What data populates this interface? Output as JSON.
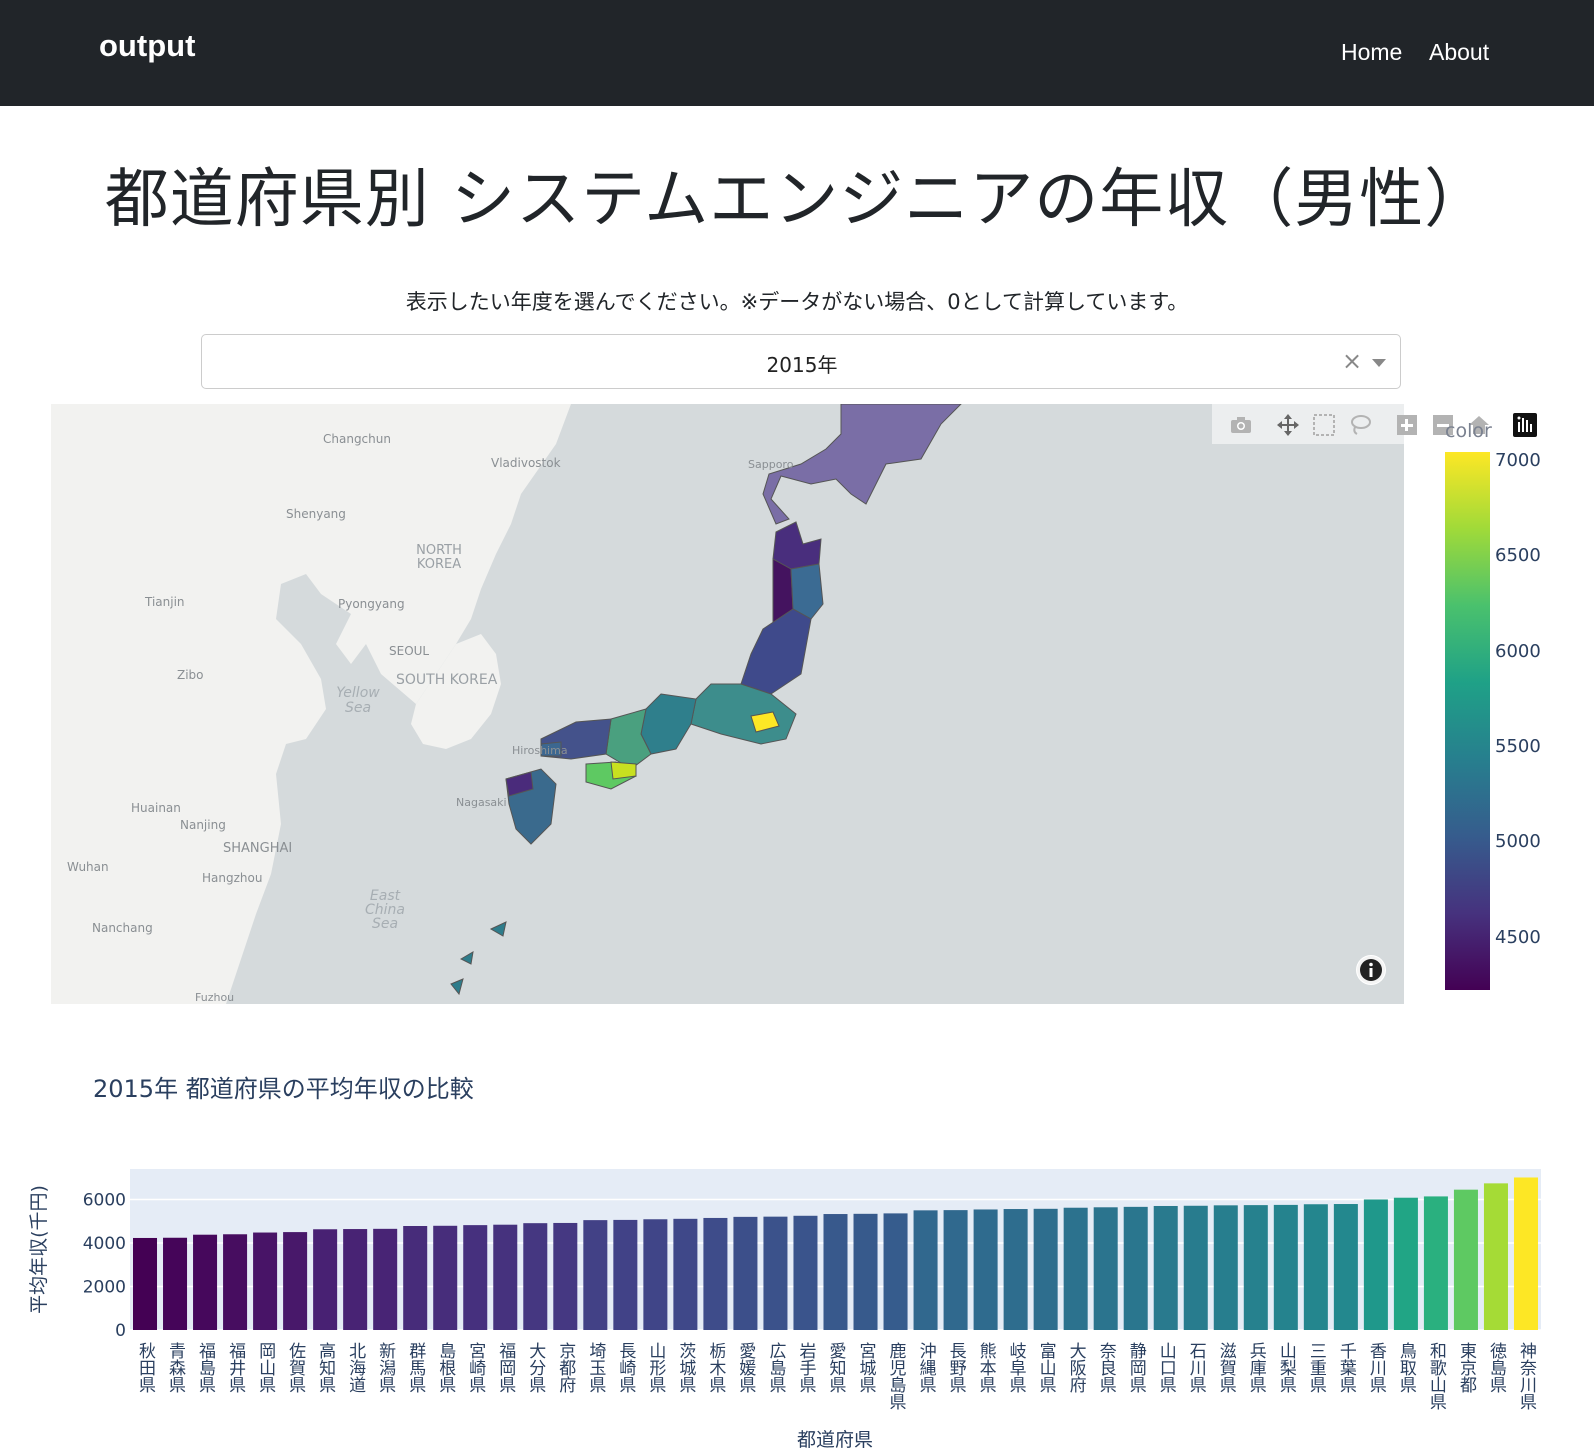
{
  "navbar": {
    "brand": "output",
    "links": [
      "Home",
      "About"
    ]
  },
  "page": {
    "title": "都道府県別 システムエンジニアの年収（男性）",
    "instruction": "表示したい年度を選んでください。※データがない場合、0として計算しています。"
  },
  "year_select": {
    "value": "2015年",
    "clear_glyph": "×"
  },
  "map": {
    "colorbar_title": "color",
    "colorbar_ticks": [
      "7000",
      "6500",
      "6000",
      "5500",
      "5000",
      "4500"
    ],
    "labels": {
      "changchun": "Changchun",
      "vladivostok": "Vladivostok",
      "sapporo": "Sapporo",
      "shenyang": "Shenyang",
      "north_korea": "NORTH KOREA",
      "tianjin": "Tianjin",
      "pyongyang": "Pyongyang",
      "seoul": "SEOUL",
      "south_korea": "SOUTH KOREA",
      "zibo": "Zibo",
      "yellow_sea": "Yellow Sea",
      "hiroshima": "Hiroshima",
      "nagasaki": "Nagasaki",
      "huainan": "Huainan",
      "nanjing": "Nanjing",
      "shanghai": "SHANGHAI",
      "wuhan": "Wuhan",
      "hangzhou": "Hangzhou",
      "nanchang": "Nanchang",
      "east_china_sea": "East China Sea",
      "fuzhou": "Fuzhou"
    },
    "icons": [
      "camera-icon",
      "pan-icon",
      "box-select-icon",
      "lasso-icon",
      "zoom-in-icon",
      "zoom-out-icon",
      "home-icon",
      "plotly-logo-icon",
      "info-icon"
    ]
  },
  "bar_chart_title": "2015年 都道府県の平均年収の比較",
  "chart_data": {
    "type": "bar",
    "title": "2015年 都道府県の平均年収の比較",
    "xlabel": "都道府県",
    "ylabel": "平均年収(千円)",
    "ylim": [
      0,
      7400
    ],
    "yticks": [
      0,
      2000,
      4000,
      6000
    ],
    "grid": true,
    "colorscale": "viridis",
    "categories": [
      "秋田県",
      "青森県",
      "福島県",
      "福井県",
      "岡山県",
      "佐賀県",
      "高知県",
      "北海道",
      "新潟県",
      "群馬県",
      "島根県",
      "宮崎県",
      "福岡県",
      "大分県",
      "京都府",
      "埼玉県",
      "長崎県",
      "山形県",
      "茨城県",
      "栃木県",
      "愛媛県",
      "広島県",
      "岩手県",
      "愛知県",
      "宮城県",
      "鹿児島県",
      "沖縄県",
      "長野県",
      "熊本県",
      "岐阜県",
      "富山県",
      "大阪府",
      "奈良県",
      "静岡県",
      "山口県",
      "石川県",
      "滋賀県",
      "兵庫県",
      "山梨県",
      "三重県",
      "千葉県",
      "香川県",
      "鳥取県",
      "和歌山県",
      "東京都",
      "徳島県",
      "神奈川県"
    ],
    "values": [
      4230,
      4240,
      4380,
      4400,
      4480,
      4500,
      4630,
      4640,
      4650,
      4780,
      4790,
      4820,
      4840,
      4910,
      4920,
      5050,
      5060,
      5090,
      5110,
      5150,
      5200,
      5210,
      5250,
      5330,
      5340,
      5360,
      5500,
      5510,
      5540,
      5560,
      5570,
      5620,
      5640,
      5660,
      5700,
      5710,
      5730,
      5740,
      5750,
      5780,
      5790,
      6000,
      6080,
      6140,
      6450,
      6740,
      7010
    ],
    "colors": [
      "#440154",
      "#450559",
      "#46085c",
      "#470d60",
      "#481467",
      "#48186a",
      "#482173",
      "#482374",
      "#482475",
      "#472c7a",
      "#472d7b",
      "#46307e",
      "#46327e",
      "#453781",
      "#453882",
      "#424186",
      "#414287",
      "#404588",
      "#3f4889",
      "#3e4c8a",
      "#3c4f8a",
      "#3b528b",
      "#3a548c",
      "#38598c",
      "#375a8c",
      "#365c8d",
      "#31688e",
      "#30698e",
      "#2f6b8e",
      "#2e6d8e",
      "#2e6e8e",
      "#2c728e",
      "#2b748e",
      "#2a768e",
      "#297a8e",
      "#287c8e",
      "#277e8e",
      "#26818e",
      "#25838e",
      "#24868e",
      "#23888e",
      "#1f988b",
      "#21a585",
      "#2ab07f",
      "#5ec962",
      "#a5db36",
      "#fde725"
    ]
  }
}
